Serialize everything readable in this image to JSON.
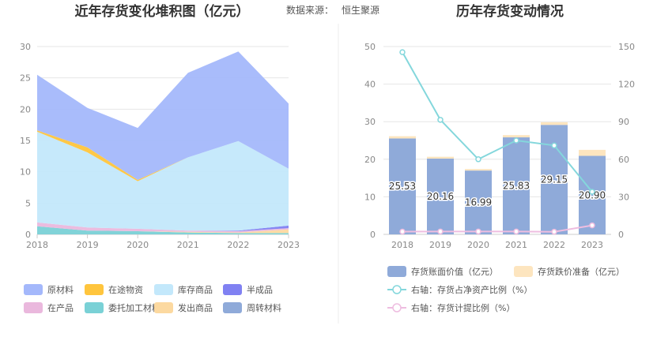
{
  "header": {
    "left_title": "近年存货变化堆积图（亿元）",
    "source_label": "数据来源：",
    "source_name": "恒生聚源",
    "right_title": "历年存货变动情况"
  },
  "chart_data": [
    {
      "type": "area",
      "stacked": true,
      "title": "近年存货变化堆积图（亿元）",
      "categories": [
        "2018",
        "2019",
        "2020",
        "2021",
        "2022",
        "2023"
      ],
      "y_ticks": [
        "0",
        "5",
        "10",
        "15",
        "20",
        "25",
        "30"
      ],
      "ylim": [
        0,
        30
      ],
      "grid": true,
      "legend_position": "bottom",
      "series": [
        {
          "name": "委托加工材料",
          "color": "#7ad1d6",
          "values": [
            1.3,
            0.6,
            0.5,
            0.3,
            0.2,
            0.2
          ]
        },
        {
          "name": "发出商品",
          "color": "#fcd9a0",
          "values": [
            0.0,
            0.0,
            0.0,
            0.1,
            0.1,
            0.6
          ]
        },
        {
          "name": "在产品",
          "color": "#eab8dd",
          "values": [
            0.6,
            0.5,
            0.4,
            0.2,
            0.2,
            0.2
          ]
        },
        {
          "name": "半成品",
          "color": "#8081f2",
          "values": [
            0.0,
            0.0,
            0.0,
            0.0,
            0.1,
            0.4
          ]
        },
        {
          "name": "库存商品",
          "color": "#c3e8fb",
          "values": [
            14.5,
            12.0,
            7.6,
            11.7,
            14.3,
            9.1
          ]
        },
        {
          "name": "在途物资",
          "color": "#ffc53d",
          "values": [
            0.2,
            0.8,
            0.2,
            0.0,
            0.0,
            0.0
          ]
        },
        {
          "name": "周转材料",
          "color": "#8faad9",
          "values": [
            0.0,
            0.0,
            0.0,
            0.0,
            0.0,
            0.0
          ]
        },
        {
          "name": "原材料",
          "color": "#a4b8fb",
          "values": [
            8.9,
            6.3,
            8.3,
            13.5,
            14.3,
            10.4
          ]
        }
      ],
      "legend_order": [
        "原材料",
        "在途物资",
        "库存商品",
        "半成品",
        "在产品",
        "委托加工材料",
        "发出商品",
        "周转材料"
      ]
    },
    {
      "type": "bar",
      "title": "历年存货变动情况",
      "categories": [
        "2018",
        "2019",
        "2020",
        "2021",
        "2022",
        "2023"
      ],
      "y_ticks_left": [
        "0",
        "10",
        "20",
        "30",
        "40",
        "50"
      ],
      "y_ticks_right": [
        "0",
        "30",
        "60",
        "90",
        "120",
        "150"
      ],
      "ylim_left": [
        0,
        50
      ],
      "ylim_right": [
        0,
        150
      ],
      "grid": true,
      "legend_position": "bottom",
      "bars": [
        {
          "name": "存货账面价值（亿元）",
          "color": "#8faad9",
          "values": [
            25.53,
            20.16,
            16.99,
            25.83,
            29.15,
            20.9
          ],
          "labels": [
            "25.53",
            "20.16",
            "16.99",
            "25.83",
            "29.15",
            "20.90"
          ]
        },
        {
          "name": "存货跌价准备（亿元）",
          "color": "#fde5bf",
          "values": [
            0.6,
            0.5,
            0.4,
            0.6,
            0.7,
            1.6
          ]
        }
      ],
      "lines": [
        {
          "name": "右轴：存货占净资产比例（%）",
          "color": "#84d7dc",
          "axis": "right",
          "values": [
            145.5,
            91.5,
            60.0,
            75.0,
            71.0,
            34.0
          ]
        },
        {
          "name": "右轴：存货计提比例（%）",
          "color": "#eebde0",
          "axis": "right",
          "values": [
            2.2,
            2.3,
            2.3,
            2.3,
            2.1,
            7.2
          ]
        }
      ]
    }
  ]
}
